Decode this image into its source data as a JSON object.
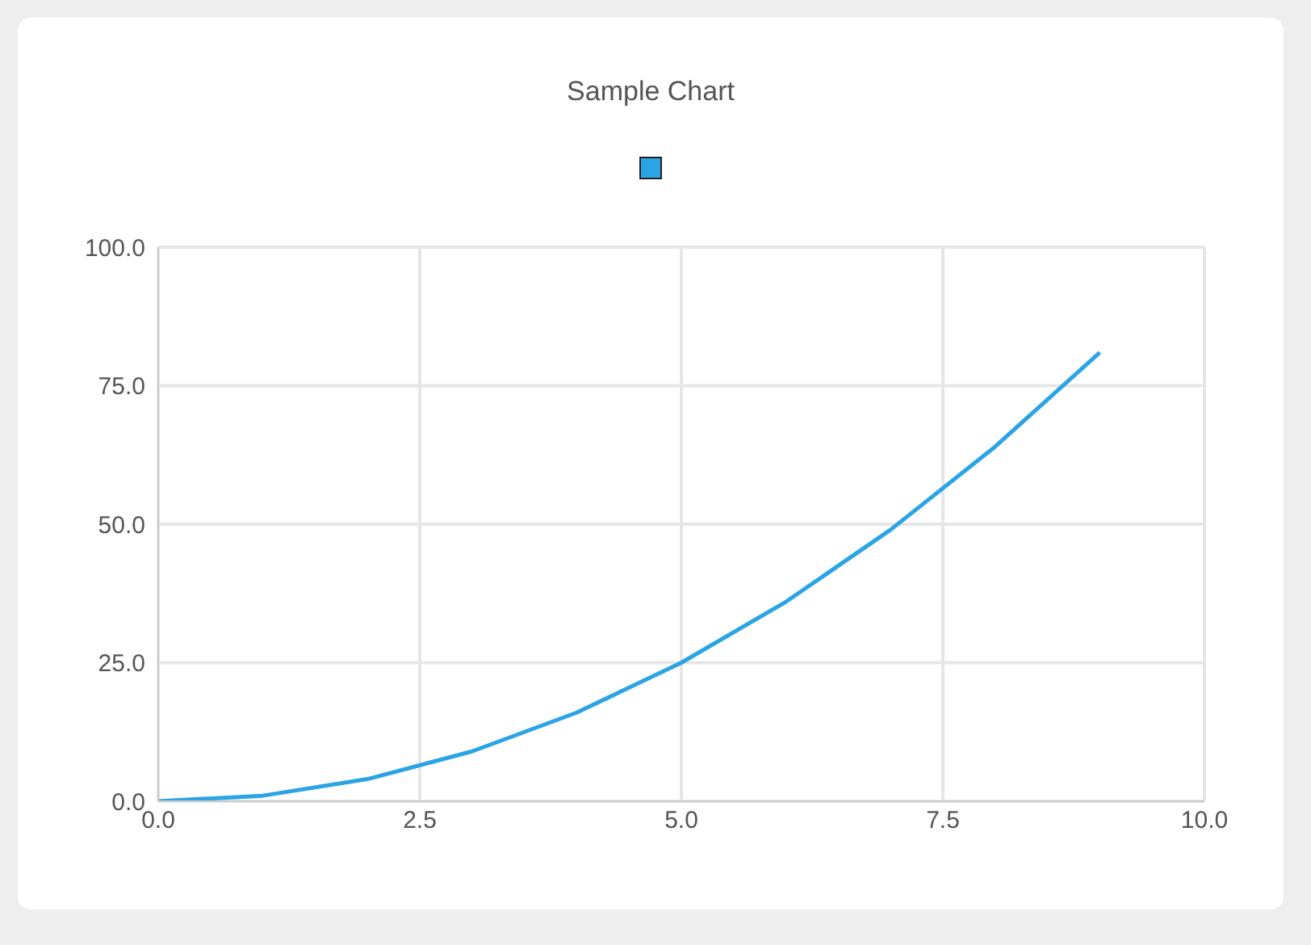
{
  "chart_data": {
    "type": "line",
    "title": "Sample Chart",
    "x": [
      0,
      1,
      2,
      3,
      4,
      5,
      6,
      7,
      8,
      9
    ],
    "series": [
      {
        "color": "#2aa4e4",
        "values": [
          0,
          1,
          4,
          9,
          16,
          25,
          36,
          49,
          64,
          81
        ]
      }
    ],
    "xlim": [
      0,
      10
    ],
    "xticks": [
      {
        "value": 0,
        "label": "0.0"
      },
      {
        "value": 2.5,
        "label": "2.5"
      },
      {
        "value": 5,
        "label": "5.0"
      },
      {
        "value": 7.5,
        "label": "7.5"
      },
      {
        "value": 10,
        "label": "10.0"
      }
    ],
    "ylim": [
      0,
      100
    ],
    "yticks": [
      {
        "value": 0,
        "label": "0.0"
      },
      {
        "value": 25,
        "label": "25.0"
      },
      {
        "value": 50,
        "label": "50.0"
      },
      {
        "value": 75,
        "label": "75.0"
      },
      {
        "value": 100,
        "label": "100.0"
      }
    ],
    "grid": true,
    "marker": "none",
    "line_style": "solid"
  }
}
